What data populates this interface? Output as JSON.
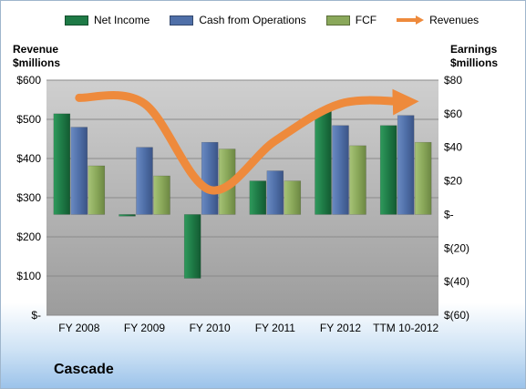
{
  "chart_data": {
    "type": "bar",
    "title": "Cascade",
    "categories": [
      "FY 2008",
      "FY 2009",
      "FY 2010",
      "FY 2011",
      "FY 2012",
      "TTM 10-2012"
    ],
    "left_axis": {
      "title_lines": [
        "Revenue",
        "$millions"
      ],
      "ylim": [
        0,
        600
      ],
      "tick_labels": [
        "$-",
        "$100",
        "$200",
        "$300",
        "$400",
        "$500",
        "$600"
      ]
    },
    "right_axis": {
      "title_lines": [
        "Earnings",
        "$millions"
      ],
      "ylim": [
        -60,
        80
      ],
      "tick_labels": [
        "$(60)",
        "$(40)",
        "$(20)",
        "$-",
        "$20",
        "$40",
        "$60",
        "$80"
      ]
    },
    "series": [
      {
        "name": "Net Income",
        "axis": "right",
        "color": "#1e7a46",
        "values": [
          60,
          -1,
          -38,
          20,
          62,
          53
        ]
      },
      {
        "name": "Cash from Operations",
        "axis": "right",
        "color": "#4f6fa8",
        "values": [
          52,
          40,
          43,
          26,
          53,
          59
        ]
      },
      {
        "name": "FCF",
        "axis": "right",
        "color": "#8aa85a",
        "values": [
          29,
          23,
          39,
          20,
          41,
          43
        ]
      },
      {
        "name": "Revenues",
        "axis": "left",
        "type": "line",
        "color": "#ee8a3c",
        "values": [
          555,
          540,
          320,
          445,
          540,
          545
        ]
      }
    ],
    "grid": true,
    "legend_position": "top"
  }
}
